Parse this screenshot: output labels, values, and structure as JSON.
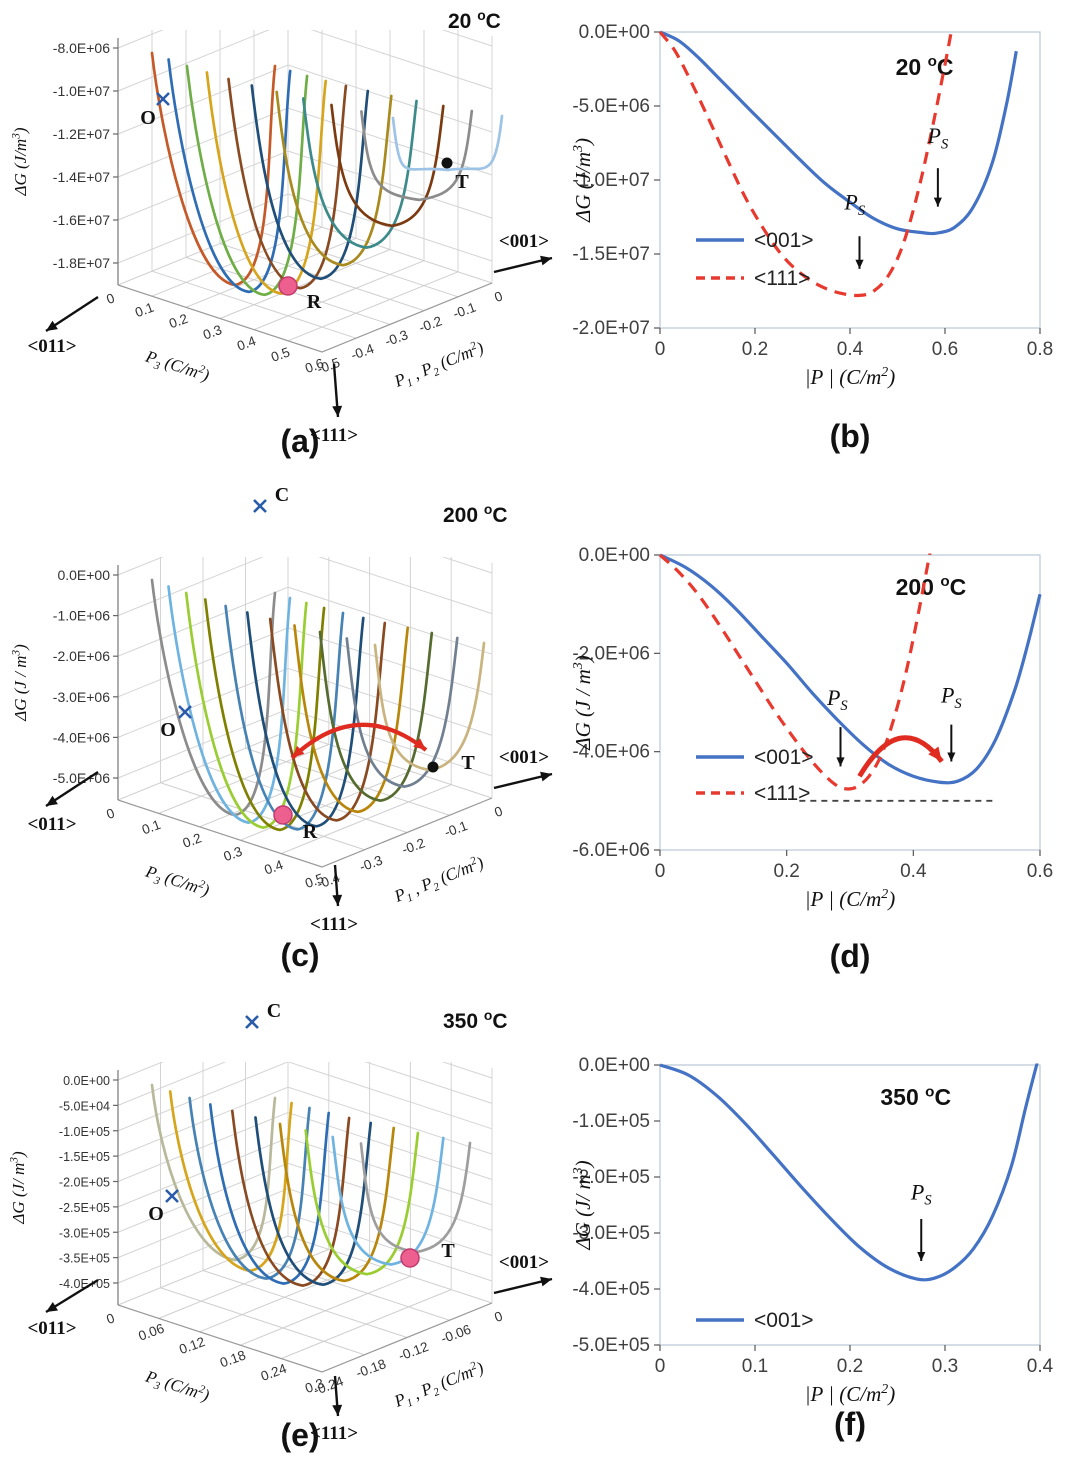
{
  "figure": {
    "background": "#ffffff",
    "description": "Free energy landscapes of ferroelectric phases at three temperatures",
    "panel_labels": [
      "(a)",
      "(b)",
      "(c)",
      "(d)",
      "(e)",
      "(f)"
    ]
  },
  "chart_data": [
    {
      "id": "a",
      "type": "line",
      "projection": "3d",
      "panel_label": "(a)",
      "title": "20 ^{o}C",
      "zlabel": "ΔG (J/m^{3})",
      "z_ticks": [
        "-8.0E+06",
        "-1.0E+07",
        "-1.2E+07",
        "-1.4E+07",
        "-1.6E+07",
        "-1.8E+07"
      ],
      "p3_label": "P_{3} (C/m^{2})",
      "p3_ticks": [
        "0",
        "0.1",
        "0.2",
        "0.3",
        "0.4",
        "0.5",
        "0.6"
      ],
      "p12_label": "P_{1} , P_{2} (C/m^{2})",
      "p12_ticks": [
        "0",
        "-0.1",
        "-0.2",
        "-0.3",
        "-0.4",
        "-0.5"
      ],
      "directions": {
        "left": "<011>",
        "down": "<111>",
        "right": "<001>"
      },
      "phase_points": [
        {
          "label": "O",
          "marker": "blue-cross"
        },
        {
          "label": "T",
          "marker": "black-dot"
        },
        {
          "label": "R",
          "marker": "pink-circle"
        }
      ],
      "curve_colors": [
        "#c55a28",
        "#2e6db4",
        "#6fae46",
        "#d6a51c",
        "#8a4a21",
        "#1f4e79",
        "#a98a1f",
        "#3d8a8a",
        "#7c3a10",
        "#8c8c8c",
        "#9dc3e6"
      ]
    },
    {
      "id": "b",
      "type": "line",
      "panel_label": "(b)",
      "title": "20 ^{o}C",
      "xlabel": "|P | (C/m^{2})",
      "ylabel": "ΔG (J/m^{3})",
      "xlim": [
        0,
        0.8
      ],
      "ylim": [
        -20000000.0,
        0
      ],
      "xticks": [
        {
          "v": 0,
          "label": "0"
        },
        {
          "v": 0.2,
          "label": "0.2"
        },
        {
          "v": 0.4,
          "label": "0.4"
        },
        {
          "v": 0.6,
          "label": "0.6"
        },
        {
          "v": 0.8,
          "label": "0.8"
        }
      ],
      "yticks": [
        {
          "v": 0,
          "label": "0.0E+00"
        },
        {
          "v": -5000000.0,
          "label": "-5.0E+06"
        },
        {
          "v": -10000000.0,
          "label": "-1.0E+07"
        },
        {
          "v": -15000000.0,
          "label": "-1.5E+07"
        },
        {
          "v": -20000000.0,
          "label": "-2.0E+07"
        }
      ],
      "series": [
        {
          "name": "<001>",
          "color": "#4472c4",
          "dash": false,
          "points": [
            [
              0,
              0
            ],
            [
              0.04,
              -600000.0
            ],
            [
              0.08,
              -1700000.0
            ],
            [
              0.12,
              -3000000.0
            ],
            [
              0.16,
              -4300000.0
            ],
            [
              0.2,
              -5600000.0
            ],
            [
              0.25,
              -7200000.0
            ],
            [
              0.3,
              -8800000.0
            ],
            [
              0.35,
              -10300000.0
            ],
            [
              0.4,
              -11500000.0
            ],
            [
              0.45,
              -12600000.0
            ],
            [
              0.5,
              -13300000.0
            ],
            [
              0.55,
              -13550000.0
            ],
            [
              0.58,
              -13600000.0
            ],
            [
              0.62,
              -13200000.0
            ],
            [
              0.66,
              -11800000.0
            ],
            [
              0.7,
              -8800000.0
            ],
            [
              0.73,
              -4800000.0
            ],
            [
              0.75,
              -1300000.0
            ]
          ]
        },
        {
          "name": "<111>",
          "color": "#e8392e",
          "dash": true,
          "points": [
            [
              0,
              0
            ],
            [
              0.03,
              -1200000.0
            ],
            [
              0.06,
              -3000000.0
            ],
            [
              0.1,
              -5700000.0
            ],
            [
              0.14,
              -8500000.0
            ],
            [
              0.18,
              -11200000.0
            ],
            [
              0.22,
              -13400000.0
            ],
            [
              0.26,
              -15200000.0
            ],
            [
              0.3,
              -16400000.0
            ],
            [
              0.34,
              -17200000.0
            ],
            [
              0.38,
              -17650000.0
            ],
            [
              0.42,
              -17800000.0
            ],
            [
              0.45,
              -17500000.0
            ],
            [
              0.48,
              -16500000.0
            ],
            [
              0.51,
              -14500000.0
            ],
            [
              0.54,
              -11200000.0
            ],
            [
              0.57,
              -7000000.0
            ],
            [
              0.6,
              -2200000.0
            ],
            [
              0.62,
              1200000.0
            ]
          ]
        }
      ],
      "annotations": [
        {
          "text": "P_{S}",
          "x": 0.41,
          "y": -12000000.0,
          "arrow_from": [
            0.42,
            -13800000.0
          ],
          "arrow_to": [
            0.42,
            -16000000.0
          ]
        },
        {
          "text": "P_{S}",
          "x": 0.585,
          "y": -7500000.0,
          "arrow_from": [
            0.585,
            -9200000.0
          ],
          "arrow_to": [
            0.585,
            -11800000.0
          ]
        }
      ]
    },
    {
      "id": "c",
      "type": "line",
      "projection": "3d",
      "panel_label": "(c)",
      "title": "200 ^{o}C",
      "zlabel": "ΔG (J / m^{3})",
      "z_ticks": [
        "0.0E+00",
        "-1.0E+06",
        "-2.0E+06",
        "-3.0E+06",
        "-4.0E+06",
        "-5.0E+06"
      ],
      "p3_label": "P_{3} (C/m^{2})",
      "p3_ticks": [
        "0",
        "0.1",
        "0.2",
        "0.3",
        "0.4",
        "0.5"
      ],
      "p12_label": "P_{1} , P_{2} (C/m^{2})",
      "p12_ticks": [
        "0",
        "-0.1",
        "-0.2",
        "-0.3",
        "-0.4"
      ],
      "directions": {
        "left": "<011>",
        "down": "<111>",
        "right": "<001>"
      },
      "phase_points": [
        {
          "label": "C",
          "marker": "blue-cross"
        },
        {
          "label": "O",
          "marker": "blue-cross"
        },
        {
          "label": "T",
          "marker": "black-dot"
        },
        {
          "label": "R",
          "marker": "pink-circle"
        }
      ],
      "curve_colors": [
        "#8c8c8c",
        "#6fb3e0",
        "#9acd32",
        "#808000",
        "#4682b4",
        "#1f4e79",
        "#8a4a21",
        "#b8860b",
        "#556b2f",
        "#708090",
        "#c9b37e"
      ]
    },
    {
      "id": "d",
      "type": "line",
      "panel_label": "(d)",
      "title": "200 ^{o}C",
      "xlabel": "|P | (C/m^{2})",
      "ylabel": "ΔG (J / m^{3})",
      "xlim": [
        0,
        0.6
      ],
      "ylim": [
        -6000000.0,
        0
      ],
      "xticks": [
        {
          "v": 0,
          "label": "0"
        },
        {
          "v": 0.2,
          "label": "0.2"
        },
        {
          "v": 0.4,
          "label": "0.4"
        },
        {
          "v": 0.6,
          "label": "0.6"
        }
      ],
      "yticks": [
        {
          "v": 0,
          "label": "0.0E+00"
        },
        {
          "v": -2000000.0,
          "label": "-2.0E+06"
        },
        {
          "v": -4000000.0,
          "label": "-4.0E+06"
        },
        {
          "v": -6000000.0,
          "label": "-6.0E+06"
        }
      ],
      "series": [
        {
          "name": "<001>",
          "color": "#4472c4",
          "dash": false,
          "points": [
            [
              0,
              0
            ],
            [
              0.04,
              -250000.0
            ],
            [
              0.08,
              -620000.0
            ],
            [
              0.12,
              -1100000.0
            ],
            [
              0.16,
              -1650000.0
            ],
            [
              0.2,
              -2200000.0
            ],
            [
              0.24,
              -2800000.0
            ],
            [
              0.28,
              -3350000.0
            ],
            [
              0.32,
              -3850000.0
            ],
            [
              0.36,
              -4250000.0
            ],
            [
              0.4,
              -4500000.0
            ],
            [
              0.44,
              -4620000.0
            ],
            [
              0.47,
              -4600000.0
            ],
            [
              0.5,
              -4350000.0
            ],
            [
              0.53,
              -3750000.0
            ],
            [
              0.56,
              -2750000.0
            ],
            [
              0.58,
              -1850000.0
            ],
            [
              0.6,
              -800000.0
            ]
          ]
        },
        {
          "name": "<111>",
          "color": "#e8392e",
          "dash": true,
          "points": [
            [
              0,
              0
            ],
            [
              0.03,
              -350000.0
            ],
            [
              0.06,
              -800000.0
            ],
            [
              0.09,
              -1350000.0
            ],
            [
              0.12,
              -1950000.0
            ],
            [
              0.15,
              -2550000.0
            ],
            [
              0.18,
              -3150000.0
            ],
            [
              0.21,
              -3700000.0
            ],
            [
              0.24,
              -4200000.0
            ],
            [
              0.27,
              -4600000.0
            ],
            [
              0.29,
              -4750000.0
            ],
            [
              0.31,
              -4720000.0
            ],
            [
              0.33,
              -4500000.0
            ],
            [
              0.35,
              -4050000.0
            ],
            [
              0.37,
              -3300000.0
            ],
            [
              0.39,
              -2300000.0
            ],
            [
              0.41,
              -1050000.0
            ],
            [
              0.43,
              300000.0
            ]
          ]
        }
      ],
      "annotations": [
        {
          "text": "P_{S}",
          "x": 0.28,
          "y": -3050000.0,
          "arrow_from": [
            0.285,
            -3500000.0
          ],
          "arrow_to": [
            0.285,
            -4300000.0
          ]
        },
        {
          "text": "P_{S}",
          "x": 0.46,
          "y": -3000000.0,
          "arrow_from": [
            0.46,
            -3450000.0
          ],
          "arrow_to": [
            0.46,
            -4200000.0
          ]
        }
      ],
      "extras": {
        "dashed_line": {
          "y": -5000000.0,
          "x1": 0.22,
          "x2": 0.53
        },
        "red_arrow": {
          "from": [
            0.315,
            -4500000.0
          ],
          "ctrl": [
            0.38,
            -3100000.0
          ],
          "to": [
            0.445,
            -4200000.0
          ]
        }
      }
    },
    {
      "id": "e",
      "type": "line",
      "projection": "3d",
      "panel_label": "(e)",
      "title": "350 ^{o}C",
      "zlabel": "ΔG (J/ m^{3})",
      "z_ticks": [
        "0.0E+00",
        "-5.0E+04",
        "-1.0E+05",
        "-1.5E+05",
        "-2.0E+05",
        "-2.5E+05",
        "-3.0E+05",
        "-3.5E+05",
        "-4.0E+05"
      ],
      "p3_label": "P_{3} (C/m^{2})",
      "p3_ticks": [
        "0",
        "0.06",
        "0.12",
        "0.18",
        "0.24",
        "0.3"
      ],
      "p12_label": "P_{1} , P_{2} (C/m^{2})",
      "p12_ticks": [
        "0",
        "-0.06",
        "-0.12",
        "-0.18",
        "-0.24"
      ],
      "directions": {
        "left": "<011>",
        "down": "<111>",
        "right": "<001>"
      },
      "phase_points": [
        {
          "label": "C",
          "marker": "blue-cross"
        },
        {
          "label": "O",
          "marker": "blue-cross"
        },
        {
          "label": "T",
          "marker": "pink-circle"
        }
      ],
      "curve_colors": [
        "#b8b89a",
        "#d6a51c",
        "#4682b4",
        "#2e6db4",
        "#8a4a21",
        "#1f4e79",
        "#b8860b",
        "#9acd32",
        "#6fb3e0",
        "#9e9e9e"
      ]
    },
    {
      "id": "f",
      "type": "line",
      "panel_label": "(f)",
      "title": "350 ^{o}C",
      "xlabel": "|P | (C/m^{2})",
      "ylabel": "ΔG (J/ m^{3})",
      "xlim": [
        0,
        0.4
      ],
      "ylim": [
        -500000.0,
        0
      ],
      "xticks": [
        {
          "v": 0,
          "label": "0"
        },
        {
          "v": 0.1,
          "label": "0.1"
        },
        {
          "v": 0.2,
          "label": "0.2"
        },
        {
          "v": 0.3,
          "label": "0.3"
        },
        {
          "v": 0.4,
          "label": "0.4"
        }
      ],
      "yticks": [
        {
          "v": 0,
          "label": "0.0E+00"
        },
        {
          "v": -100000.0,
          "label": "-1.0E+05"
        },
        {
          "v": -200000.0,
          "label": "-2.0E+05"
        },
        {
          "v": -300000.0,
          "label": "-3.0E+05"
        },
        {
          "v": -400000.0,
          "label": "-4.0E+05"
        },
        {
          "v": -500000.0,
          "label": "-5.0E+05"
        }
      ],
      "series": [
        {
          "name": "<001>",
          "color": "#4472c4",
          "dash": false,
          "points": [
            [
              0,
              0
            ],
            [
              0.03,
              -18000.0
            ],
            [
              0.06,
              -55000.0
            ],
            [
              0.09,
              -105000.0
            ],
            [
              0.12,
              -162000.0
            ],
            [
              0.15,
              -220000.0
            ],
            [
              0.18,
              -275000.0
            ],
            [
              0.21,
              -325000.0
            ],
            [
              0.24,
              -362000.0
            ],
            [
              0.27,
              -382000.0
            ],
            [
              0.29,
              -380000.0
            ],
            [
              0.31,
              -362000.0
            ],
            [
              0.33,
              -328000.0
            ],
            [
              0.35,
              -270000.0
            ],
            [
              0.37,
              -180000.0
            ],
            [
              0.385,
              -75000.0
            ],
            [
              0.398,
              10000.0
            ]
          ]
        }
      ],
      "annotations": [
        {
          "text": "P_{S}",
          "x": 0.275,
          "y": -240000.0,
          "arrow_from": [
            0.275,
            -275000.0
          ],
          "arrow_to": [
            0.275,
            -350000.0
          ]
        }
      ]
    }
  ]
}
